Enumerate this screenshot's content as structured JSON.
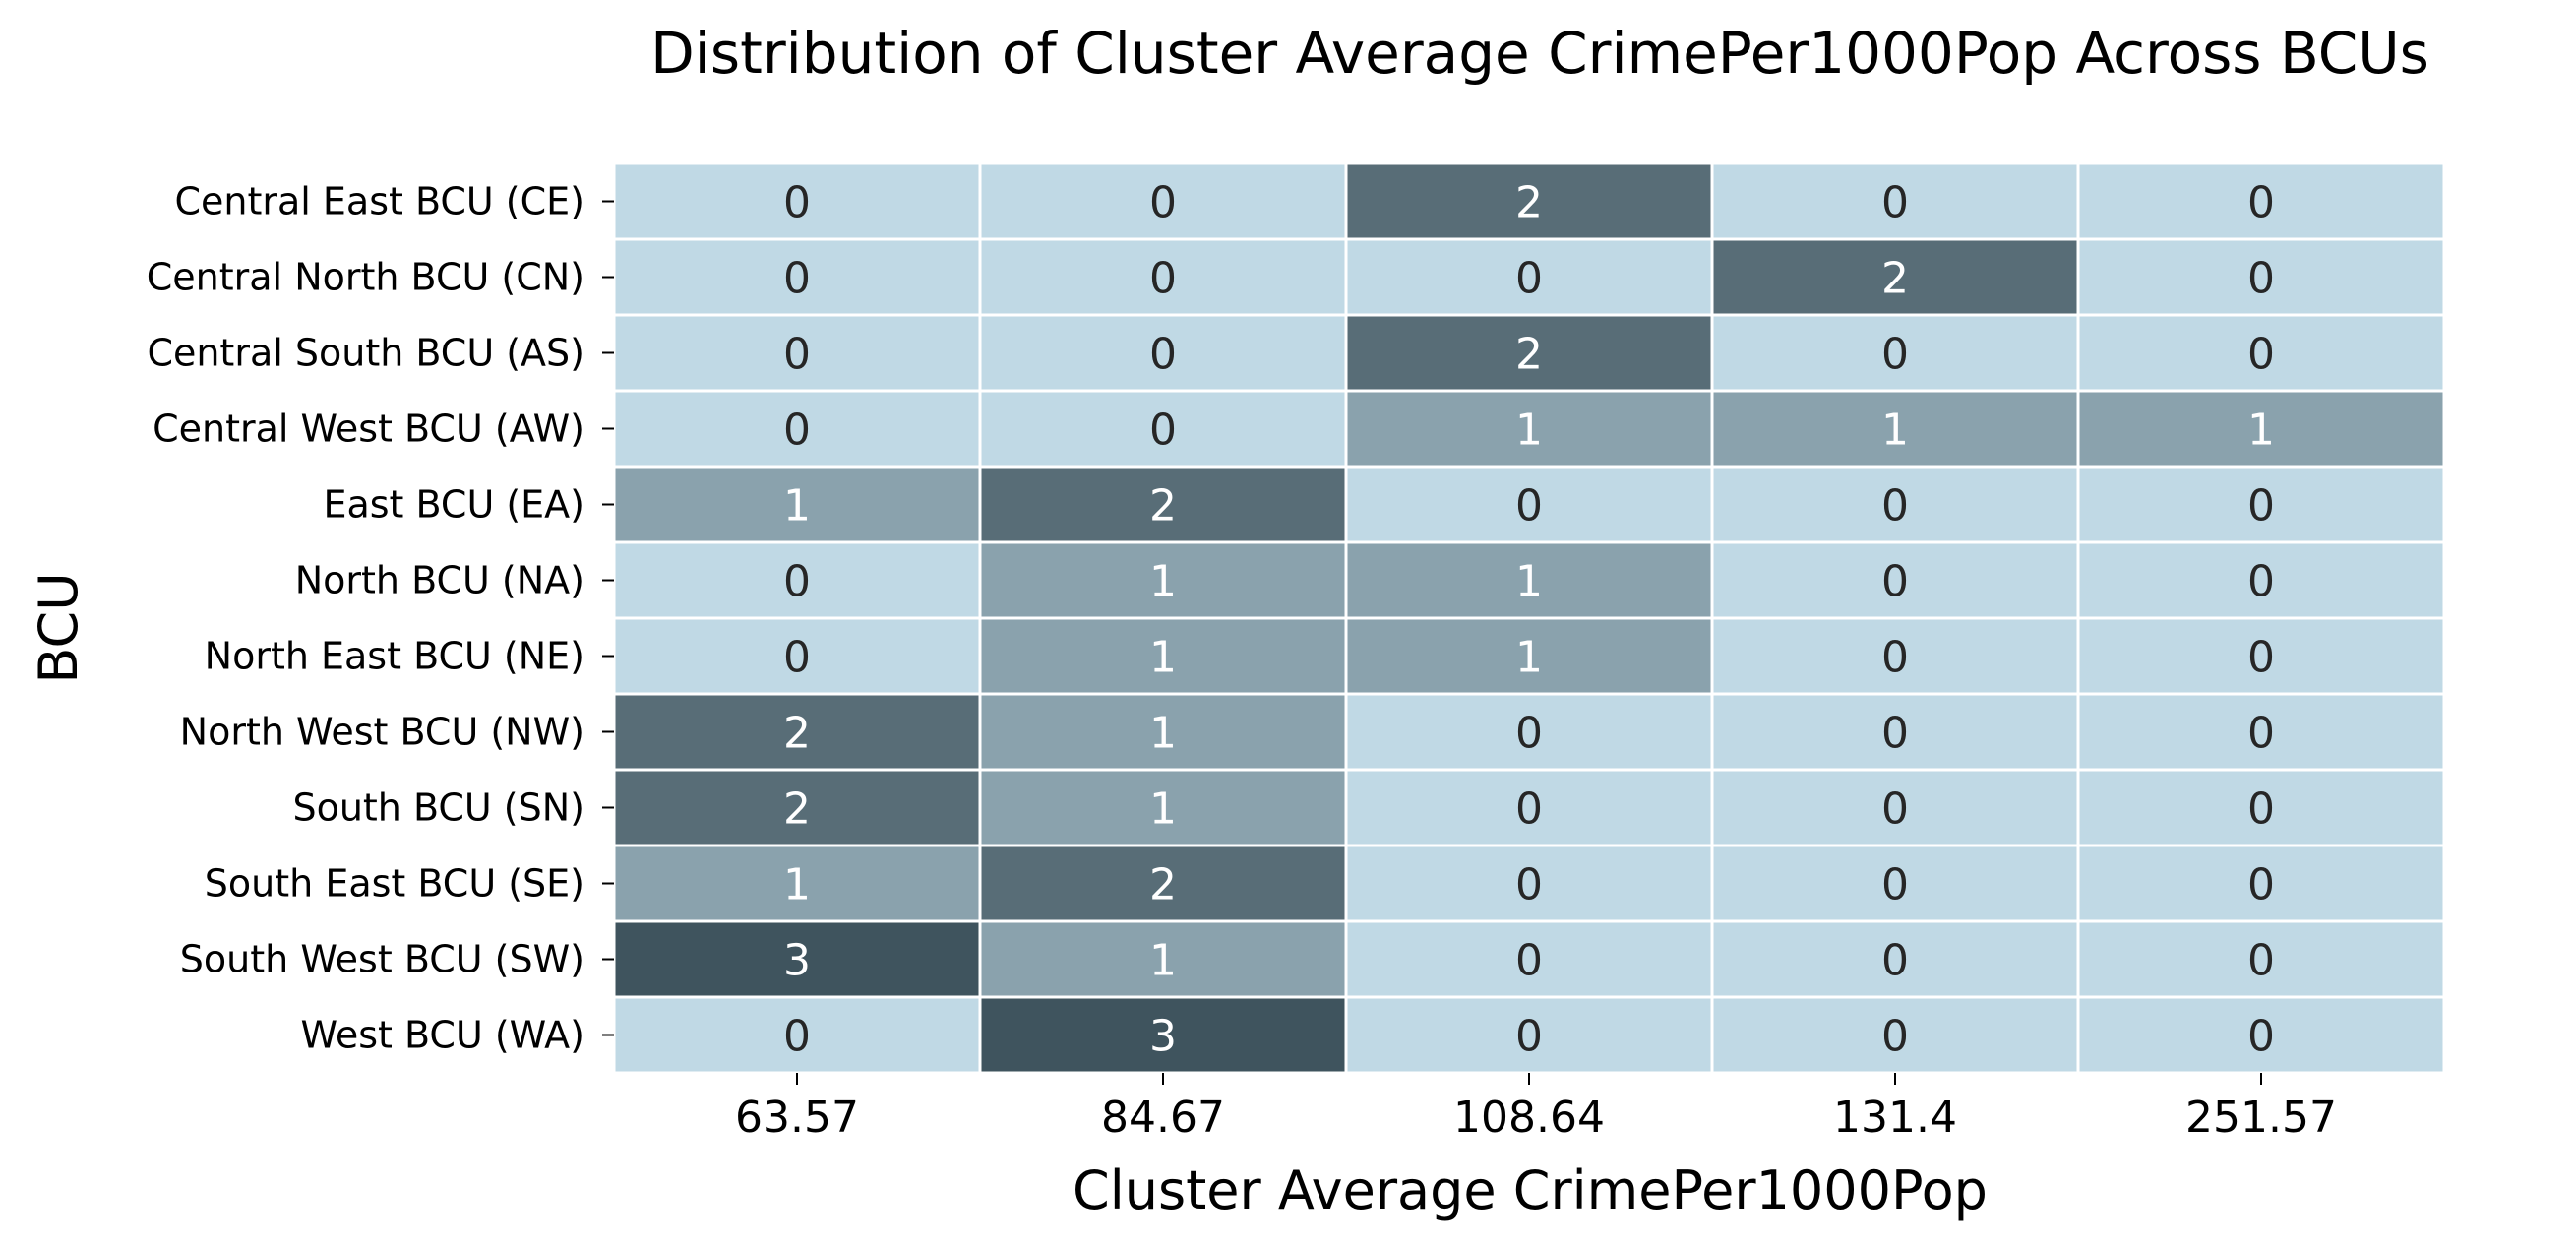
{
  "chart_data": {
    "type": "heatmap",
    "title": "Distribution of Cluster Average CrimePer1000Pop Across BCUs",
    "xlabel": "Cluster Average CrimePer1000Pop",
    "ylabel": "BCU",
    "x_categories": [
      "63.57",
      "84.67",
      "108.64",
      "131.4",
      "251.57"
    ],
    "y_categories": [
      "Central East BCU (CE)",
      "Central North BCU (CN)",
      "Central South BCU (AS)",
      "Central West BCU (AW)",
      "East BCU (EA)",
      "North BCU (NA)",
      "North East BCU (NE)",
      "North West BCU (NW)",
      "South BCU (SN)",
      "South East BCU (SE)",
      "South West BCU (SW)",
      "West BCU (WA)"
    ],
    "values": [
      [
        0,
        0,
        2,
        0,
        0
      ],
      [
        0,
        0,
        0,
        2,
        0
      ],
      [
        0,
        0,
        2,
        0,
        0
      ],
      [
        0,
        0,
        1,
        1,
        1
      ],
      [
        1,
        2,
        0,
        0,
        0
      ],
      [
        0,
        1,
        1,
        0,
        0
      ],
      [
        0,
        1,
        1,
        0,
        0
      ],
      [
        2,
        1,
        0,
        0,
        0
      ],
      [
        2,
        1,
        0,
        0,
        0
      ],
      [
        1,
        2,
        0,
        0,
        0
      ],
      [
        3,
        1,
        0,
        0,
        0
      ],
      [
        0,
        3,
        0,
        0,
        0
      ]
    ],
    "color_scale": {
      "0": "#c0d9e5",
      "1": "#8aa2ad",
      "2": "#586d77",
      "3": "#3f545e"
    },
    "annotation_colors": {
      "light_cell_text": "#262626",
      "dark_cell_text": "#ffffff"
    },
    "cell_gridline_color": "#ffffff",
    "colorbar": false,
    "annotations_shown": true
  }
}
